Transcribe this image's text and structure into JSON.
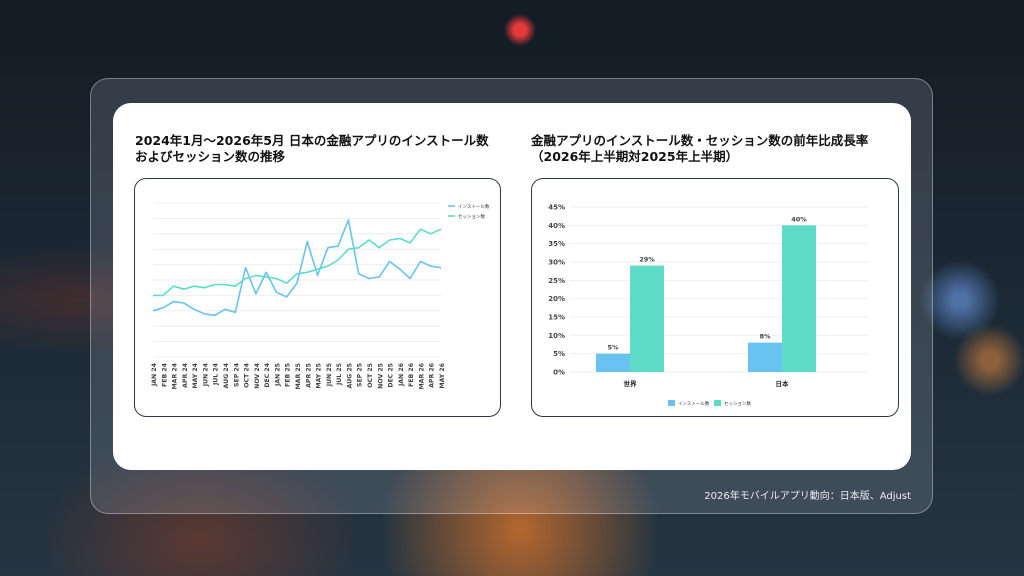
{
  "source": "2026年モバイルアプリ動向：日本版、Adjust",
  "colors": {
    "install": "#68c3f0",
    "session": "#5fdcc7",
    "grid": "#eeeeee",
    "tick": "#444444"
  },
  "chart_data": [
    {
      "type": "line",
      "title": "2024年1月～2026年5月 日本の金融アプリのインストール数\nおよびセッション数の推移",
      "x": [
        "JAN 24",
        "FEB 24",
        "MAR 24",
        "APR 24",
        "MAY 24",
        "JUN 24",
        "JUL 24",
        "AUG 24",
        "SEP 24",
        "OCT 24",
        "NOV 24",
        "DEC 24",
        "JAN 25",
        "FEB 25",
        "MAR 25",
        "APR 25",
        "MAY 25",
        "JUN 25",
        "JUL 25",
        "AUG 25",
        "SEP 25",
        "OCT 25",
        "NOV 25",
        "DEC 25",
        "JAN 26",
        "FEB 26",
        "MAR 26",
        "APR 26",
        "MAY 26"
      ],
      "series": [
        {
          "name": "インストール数",
          "values": [
            30,
            32,
            36,
            35,
            31,
            28,
            27,
            31,
            29,
            58,
            41,
            55,
            42,
            39,
            48,
            75,
            53,
            71,
            72,
            89,
            54,
            51,
            52,
            62,
            57,
            51,
            62,
            59,
            58
          ]
        },
        {
          "name": "セッション数",
          "values": [
            40,
            40,
            46,
            44,
            46,
            45,
            47,
            47,
            46,
            51,
            53,
            52,
            51,
            48,
            54,
            55,
            57,
            59,
            63,
            70,
            71,
            76,
            71,
            76,
            77,
            74,
            83,
            80,
            83
          ]
        }
      ],
      "ylim": [
        0,
        100
      ],
      "grid": true,
      "legend": "top-right"
    },
    {
      "type": "bar",
      "title": "金融アプリのインストール数・セッション数の前年比成長率\n（2026年上半期対2025年上半期）",
      "categories": [
        "世界",
        "日本"
      ],
      "series": [
        {
          "name": "インストール数",
          "values": [
            5,
            8
          ]
        },
        {
          "name": "セッション数",
          "values": [
            29,
            40
          ]
        }
      ],
      "data_labels": [
        [
          "5%",
          "29%"
        ],
        [
          "8%",
          "40%"
        ]
      ],
      "yticks": [
        "0%",
        "5%",
        "10%",
        "15%",
        "20%",
        "25%",
        "30%",
        "35%",
        "40%",
        "45%"
      ],
      "ylim": [
        0,
        45
      ],
      "grid": true,
      "legend": "bottom"
    }
  ]
}
